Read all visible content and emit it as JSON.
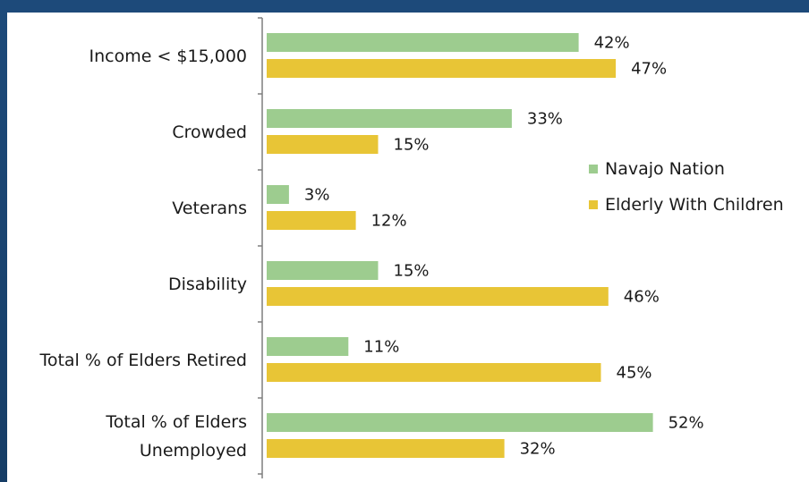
{
  "chart_data": {
    "type": "bar",
    "orientation": "horizontal",
    "categories": [
      [
        "Income < $15,000"
      ],
      [
        "Crowded"
      ],
      [
        "Veterans"
      ],
      [
        "Disability"
      ],
      [
        "Total % of Elders Retired"
      ],
      [
        "Total % of Elders",
        "Unemployed"
      ]
    ],
    "series": [
      {
        "name": "Navajo Nation",
        "color": "#9dcc8f",
        "values": [
          42,
          33,
          3,
          15,
          11,
          52
        ],
        "labels": [
          "42%",
          "33%",
          "3%",
          "15%",
          "11%",
          "52%"
        ]
      },
      {
        "name": "Elderly With Children",
        "color": "#e8c536",
        "values": [
          47,
          15,
          12,
          46,
          45,
          32
        ],
        "labels": [
          "47%",
          "15%",
          "12%",
          "46%",
          "45%",
          "32%"
        ]
      }
    ],
    "xlim": [
      0,
      60
    ],
    "grid": false,
    "legend_position": "right"
  }
}
